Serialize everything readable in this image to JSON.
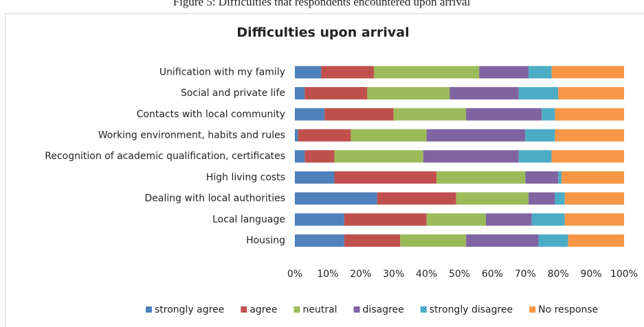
{
  "figure_caption": "Figure 5: Difficulties that respondents encountered upon arrival",
  "chart_data": {
    "type": "stacked_barh",
    "title": "Difficulties upon arrival",
    "categories": [
      "Unification with my family",
      "Social and private life",
      "Contacts with local community",
      "Working environment, habits and rules",
      "Recognition of academic qualification, certificates",
      "High living costs",
      "Dealing with local authorities",
      "Local language",
      "Housing"
    ],
    "series": [
      {
        "name": "strongly agree",
        "color": "#4f81bd",
        "values": [
          8,
          3,
          9,
          1,
          3,
          12,
          25,
          15,
          15
        ]
      },
      {
        "name": "agree",
        "color": "#c0504d",
        "values": [
          16,
          19,
          21,
          16,
          9,
          31,
          24,
          25,
          17
        ]
      },
      {
        "name": "neutral",
        "color": "#9bbb59",
        "values": [
          32,
          25,
          22,
          23,
          27,
          27,
          22,
          18,
          20
        ]
      },
      {
        "name": "disagree",
        "color": "#8064a2",
        "values": [
          15,
          21,
          23,
          30,
          29,
          10,
          8,
          14,
          22
        ]
      },
      {
        "name": "strongly disagree",
        "color": "#4bacc6",
        "values": [
          7,
          12,
          4,
          9,
          10,
          1,
          3,
          10,
          9
        ]
      },
      {
        "name": "No response",
        "color": "#f79646",
        "values": [
          22,
          20,
          21,
          21,
          22,
          19,
          18,
          18,
          17
        ]
      }
    ],
    "xlim": [
      0,
      100
    ],
    "xticks": [
      {
        "value": 0,
        "label": "0%"
      },
      {
        "value": 10,
        "label": "10%"
      },
      {
        "value": 20,
        "label": "20%"
      },
      {
        "value": 30,
        "label": "30%"
      },
      {
        "value": 40,
        "label": "40%"
      },
      {
        "value": 50,
        "label": "50%"
      },
      {
        "value": 60,
        "label": "60%"
      },
      {
        "value": 70,
        "label": "70%"
      },
      {
        "value": 80,
        "label": "80%"
      },
      {
        "value": 90,
        "label": "90%"
      },
      {
        "value": 100,
        "label": "100%"
      }
    ],
    "legend": "bottom"
  }
}
